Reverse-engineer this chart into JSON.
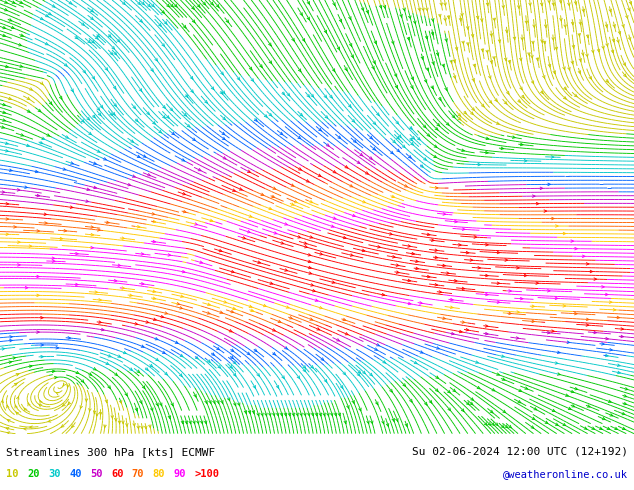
{
  "title_left": "Streamlines 300 hPa [kts] ECMWF",
  "title_right": "Su 02-06-2024 12:00 UTC (12+192)",
  "subtitle_right": "@weatheronline.co.uk",
  "legend_entries": [
    {
      "label": "10",
      "color": "#c8c800"
    },
    {
      "label": "20",
      "color": "#00c800"
    },
    {
      "label": "30",
      "color": "#00c8c8"
    },
    {
      "label": "40",
      "color": "#0064ff"
    },
    {
      "label": "50",
      "color": "#c800c8"
    },
    {
      "label": "60",
      "color": "#ff0000"
    },
    {
      "label": "70",
      "color": "#ff6400"
    },
    {
      "label": "80",
      "color": "#ffc800"
    },
    {
      "label": "90",
      "color": "#ff00ff"
    },
    {
      "label": ">100",
      "color": "#ff0000"
    }
  ],
  "map_bg": "#ffffff",
  "fig_width": 6.34,
  "fig_height": 4.9,
  "dpi": 100,
  "speed_bounds": [
    0,
    10,
    20,
    30,
    40,
    50,
    60,
    70,
    80,
    90,
    100,
    200
  ],
  "speed_colors": [
    "#c8c800",
    "#c8c800",
    "#00c800",
    "#00c8c8",
    "#0064ff",
    "#c800c8",
    "#ff0000",
    "#ff6400",
    "#ffc800",
    "#ff00ff",
    "#ff0000"
  ]
}
